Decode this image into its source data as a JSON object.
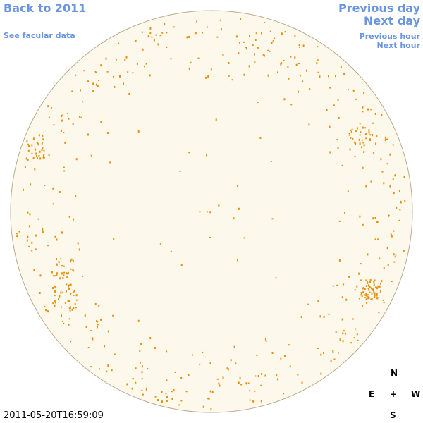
{
  "nav": {
    "back": "Back to 2011",
    "facular": "See facular data",
    "previous_day": "Previous day",
    "next_day": "Next day",
    "previous_hour": "Previous hour",
    "next_hour": "Next hour"
  },
  "compass": {
    "north": "N",
    "east": "E",
    "center": "+",
    "west": "W",
    "south": "S"
  },
  "timestamp": "2011-05-20T16:59:09"
}
